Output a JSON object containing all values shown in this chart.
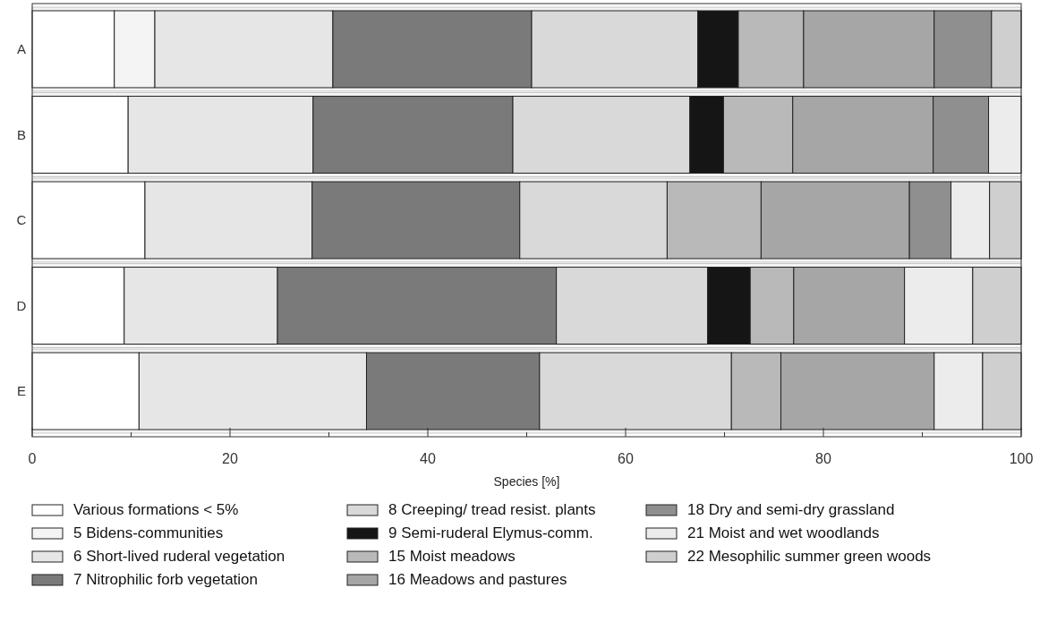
{
  "chart_data": {
    "type": "bar",
    "orientation": "horizontal",
    "stacked": true,
    "xlabel": "Species [%]",
    "categories": [
      "A",
      "B",
      "C",
      "D",
      "E"
    ],
    "series": [
      {
        "name": "Various formations < 5%",
        "color": "#ffffff",
        "values": [
          8.3,
          9.7,
          11.4,
          9.3,
          10.8
        ]
      },
      {
        "name": "5 Bidens-communities",
        "color": "#f4f4f4",
        "values": [
          4.1,
          0,
          0,
          0,
          0
        ]
      },
      {
        "name": "6 Short-lived ruderal vegetation",
        "color": "#e6e6e6",
        "values": [
          18.0,
          18.7,
          16.9,
          15.5,
          23.0
        ]
      },
      {
        "name": "7 Nitrophilic forb vegetation",
        "color": "#7a7a7a",
        "values": [
          20.1,
          20.2,
          21.0,
          28.2,
          17.5
        ]
      },
      {
        "name": "8 Creeping/ tread resist. plants",
        "color": "#d9d9d9",
        "values": [
          16.8,
          17.9,
          14.9,
          15.3,
          19.4
        ]
      },
      {
        "name": "9 Semi-ruderal Elymus-comm.",
        "color": "#151515",
        "values": [
          4.1,
          3.4,
          0,
          4.3,
          0
        ]
      },
      {
        "name": "15 Moist meadows",
        "color": "#b9b9b9",
        "values": [
          6.6,
          7.0,
          9.5,
          4.4,
          5.0
        ]
      },
      {
        "name": "16 Meadows and pastures",
        "color": "#a6a6a6",
        "values": [
          13.2,
          14.2,
          15.0,
          11.2,
          15.5
        ]
      },
      {
        "name": "18 Dry and semi-dry grassland",
        "color": "#8f8f8f",
        "values": [
          5.8,
          5.6,
          4.2,
          0,
          0
        ]
      },
      {
        "name": "21 Moist and wet woodlands",
        "color": "#ececec",
        "values": [
          0,
          3.3,
          3.9,
          6.9,
          4.9
        ]
      },
      {
        "name": "22 Mesophilic summer green woods",
        "color": "#cfcfcf",
        "values": [
          3.0,
          0,
          3.2,
          4.9,
          3.9
        ]
      }
    ],
    "xlim": [
      0,
      100
    ],
    "xticks": [
      0,
      {
        "value": 10,
        "label": null
      },
      20,
      {
        "value": 30,
        "label": null
      },
      40,
      {
        "value": 50,
        "label": null
      },
      60,
      {
        "value": 70,
        "label": null
      },
      80,
      {
        "value": 90,
        "label": null
      },
      100
    ],
    "grid": false,
    "legend": "bottom"
  }
}
